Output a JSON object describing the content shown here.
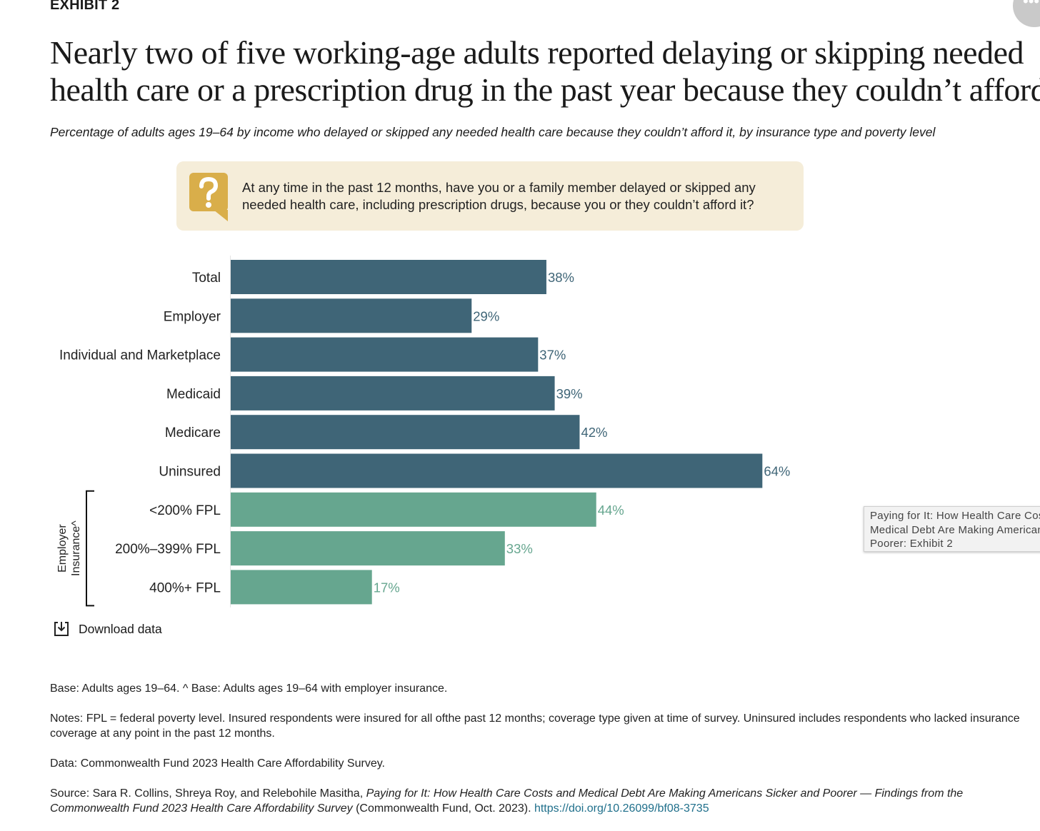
{
  "header": {
    "exhibit": "EXHIBIT 2",
    "title_line1": "Nearly two of five working-age adults reported delaying or skipping needed",
    "title_line2": "health care or a prescription drug in the past year because they couldn’t afford it",
    "subtitle": "Percentage of adults ages 19–64 by income who delayed or skipped any needed health care because they couldn’t afford it, by insurance type and poverty level"
  },
  "question": {
    "icon": "question-speech-bubble-icon",
    "line1": "At any time in the past 12 months, have you or a family member delayed or skipped any",
    "line2": "needed health care, including prescription drugs, because you or they couldn’t afford it?"
  },
  "chart_data": {
    "type": "bar",
    "orientation": "horizontal",
    "categories": [
      "Total",
      "Employer",
      "Individual and Marketplace",
      "Medicaid",
      "Medicare",
      "Uninsured",
      "<200% FPL",
      "200%–399% FPL",
      "400%+ FPL"
    ],
    "values": [
      38,
      29,
      37,
      39,
      42,
      64,
      44,
      33,
      17
    ],
    "value_labels": [
      "38%",
      "29%",
      "37%",
      "39%",
      "42%",
      "64%",
      "44%",
      "33%",
      "17%"
    ],
    "groups": [
      {
        "name": "",
        "start": 0,
        "end": 5,
        "color": "#3f6577"
      },
      {
        "name": "Employer Insurance^",
        "lines": [
          "Employer",
          "Insurance^"
        ],
        "start": 6,
        "end": 8,
        "color": "#66a68f"
      }
    ],
    "xlim": [
      0,
      100
    ],
    "grid": false,
    "legend": "none"
  },
  "download_label": "Download data",
  "download_icon": "download-icon",
  "tooltip": {
    "line1": "Paying for It: How Health Care Costs and",
    "line2": "Medical Debt Are Making Americans Sicker and",
    "line3": "Poorer: Exhibit 2"
  },
  "notes": {
    "base": "Base: Adults ages 19–64. ^ Base: Adults ages 19–64 with employer insurance.",
    "notes": "Notes: FPL = federal poverty level. Insured respondents were insured for all ofthe past 12 months; coverage type given at time of survey. Uninsured includes respondents who lacked insurance coverage at any point in the past 12 months.",
    "data": "Data: Commonwealth Fund 2023 Health Care Affordability Survey.",
    "source_prefix": "Source: Sara R. Collins, Shreya Roy, and Relebohile Masitha, ",
    "source_title": "Paying for It: How Health Care Costs and Medical Debt Are Making Americans Sicker and Poorer — Findings from the Commonwealth Fund 2023 Health Care Affordability Survey",
    "source_suffix": " (Commonwealth Fund, Oct. 2023). ",
    "source_link": "https://doi.org/10.26099/bf08-3735"
  },
  "colors": {
    "bar_primary": "#3f6577",
    "bar_secondary": "#66a68f",
    "callout_bg": "#f5edd9",
    "callout_icon": "#d9ae4a"
  }
}
